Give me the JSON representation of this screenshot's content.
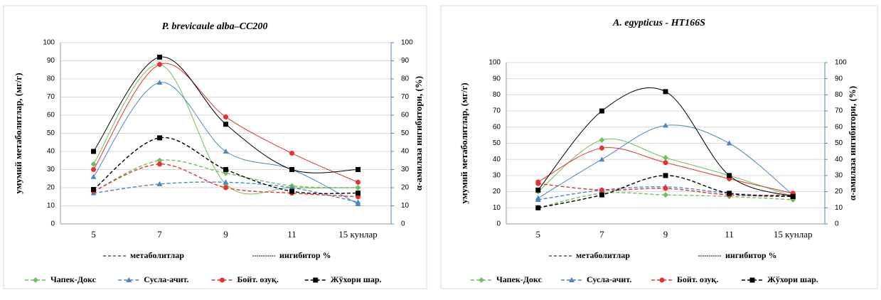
{
  "chart_data": [
    {
      "type": "line",
      "title": "P. brevicaule alba–CC200",
      "y_label": "умумий метаболитлар, (мг/г)",
      "y2_label": "α-амилаза ингибитори, (%)",
      "categories": [
        "5",
        "7",
        "9",
        "11",
        "15 кунлар"
      ],
      "ylim": [
        0,
        100
      ],
      "yticks": [
        0,
        10,
        20,
        30,
        40,
        50,
        60,
        70,
        80,
        90,
        100
      ],
      "y2lim": [
        0,
        100
      ],
      "y2ticks": [
        0,
        10,
        20,
        30,
        40,
        50,
        60,
        70,
        80,
        90,
        100
      ],
      "line_legend": [
        {
          "label": "метаболитлар",
          "dashed": true
        },
        {
          "label": "ингибитор %",
          "dashed": false
        }
      ],
      "series": [
        {
          "name": "Чапек-Докс",
          "color": "#6fbf5a",
          "marker": "diamond",
          "metabolites": [
            18,
            35,
            28,
            21,
            20
          ],
          "inhibitor": [
            33,
            88,
            22,
            20,
            20
          ]
        },
        {
          "name": "Сусла-ачит.",
          "color": "#4a86c8",
          "marker": "triangle",
          "metabolites": [
            17,
            22,
            23,
            20,
            12
          ],
          "inhibitor": [
            26,
            78,
            40,
            30,
            11
          ]
        },
        {
          "name": "Бойт. озуқ.",
          "color": "#e8312f",
          "marker": "circle",
          "metabolites": [
            18,
            33,
            20,
            17,
            15
          ],
          "inhibitor": [
            30,
            88,
            59,
            39,
            23
          ]
        },
        {
          "name": "Жўхори шар.",
          "color": "#000000",
          "marker": "square",
          "metabolites": [
            19,
            47.5,
            30,
            18,
            17
          ],
          "inhibitor": [
            40,
            92,
            55,
            30,
            30
          ]
        }
      ]
    },
    {
      "type": "line",
      "title": "A. egypticus - HT166S",
      "y_label": "умумий метаболитлар, (мг/г)",
      "y2_label": "α-амилаза ингибитори, (%)",
      "categories": [
        "5",
        "7",
        "9",
        "11",
        "15 кунлар"
      ],
      "ylim": [
        0,
        100
      ],
      "yticks": [
        0,
        10,
        20,
        30,
        40,
        50,
        60,
        70,
        80,
        90,
        100
      ],
      "y2lim": [
        0,
        100
      ],
      "y2ticks": [
        0,
        10,
        20,
        30,
        40,
        50,
        60,
        70,
        80,
        90,
        100
      ],
      "line_legend": [
        {
          "label": "метаболитлар",
          "dashed": true
        },
        {
          "label": "ингибитор %",
          "dashed": false
        }
      ],
      "series": [
        {
          "name": "Чапек-Докс",
          "color": "#6fbf5a",
          "marker": "diamond",
          "metabolites": [
            10,
            19,
            18,
            17,
            15
          ],
          "inhibitor": [
            20,
            52,
            41,
            30,
            17
          ]
        },
        {
          "name": "Сусла-ачит.",
          "color": "#4a86c8",
          "marker": "triangle",
          "metabolites": [
            15,
            21,
            23,
            19,
            17
          ],
          "inhibitor": [
            16,
            40,
            61,
            50,
            18
          ]
        },
        {
          "name": "Бойт. озуқ.",
          "color": "#e8312f",
          "marker": "circle",
          "metabolites": [
            25,
            21,
            22,
            18,
            18
          ],
          "inhibitor": [
            26,
            47,
            38,
            28,
            19
          ]
        },
        {
          "name": "Жўхори шар.",
          "color": "#000000",
          "marker": "square",
          "metabolites": [
            10,
            18,
            30,
            19,
            17
          ],
          "inhibitor": [
            21,
            70,
            82,
            30,
            17
          ]
        }
      ]
    }
  ]
}
